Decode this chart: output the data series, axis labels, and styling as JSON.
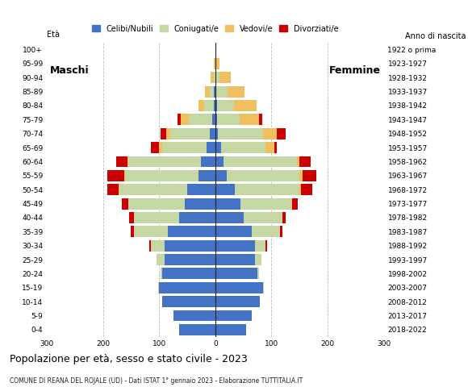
{
  "age_groups": [
    "0-4",
    "5-9",
    "10-14",
    "15-19",
    "20-24",
    "25-29",
    "30-34",
    "35-39",
    "40-44",
    "45-49",
    "50-54",
    "55-59",
    "60-64",
    "65-69",
    "70-74",
    "75-79",
    "80-84",
    "85-89",
    "90-94",
    "95-99",
    "100+"
  ],
  "birth_years": [
    "2018-2022",
    "2013-2017",
    "2008-2012",
    "2003-2007",
    "1998-2002",
    "1993-1997",
    "1988-1992",
    "1983-1987",
    "1978-1982",
    "1973-1977",
    "1968-1972",
    "1963-1967",
    "1958-1962",
    "1953-1957",
    "1948-1952",
    "1943-1947",
    "1938-1942",
    "1933-1937",
    "1928-1932",
    "1923-1927",
    "1922 o prima"
  ],
  "male_celibe": [
    65,
    75,
    95,
    100,
    95,
    90,
    90,
    85,
    65,
    55,
    50,
    30,
    25,
    15,
    10,
    5,
    2,
    2,
    0,
    0,
    0
  ],
  "male_coniugato": [
    0,
    0,
    0,
    2,
    2,
    15,
    25,
    60,
    80,
    100,
    120,
    130,
    130,
    80,
    70,
    42,
    18,
    8,
    3,
    0,
    0
  ],
  "male_vedovo": [
    0,
    0,
    0,
    0,
    0,
    0,
    0,
    0,
    0,
    0,
    2,
    2,
    2,
    5,
    8,
    15,
    10,
    8,
    5,
    2,
    0
  ],
  "male_divorziato": [
    0,
    0,
    0,
    0,
    0,
    0,
    2,
    5,
    8,
    12,
    20,
    30,
    20,
    15,
    10,
    5,
    0,
    0,
    0,
    0,
    0
  ],
  "female_celibe": [
    55,
    65,
    80,
    85,
    75,
    70,
    70,
    65,
    50,
    45,
    35,
    20,
    15,
    10,
    5,
    3,
    3,
    2,
    2,
    0,
    0
  ],
  "female_coniugato": [
    0,
    0,
    0,
    2,
    3,
    12,
    20,
    50,
    70,
    90,
    115,
    130,
    130,
    80,
    80,
    40,
    30,
    20,
    5,
    2,
    0
  ],
  "female_vedovo": [
    0,
    0,
    0,
    0,
    0,
    0,
    0,
    0,
    0,
    2,
    2,
    5,
    5,
    15,
    25,
    35,
    40,
    30,
    20,
    5,
    2
  ],
  "female_divorziato": [
    0,
    0,
    0,
    0,
    0,
    0,
    2,
    5,
    5,
    10,
    20,
    25,
    20,
    5,
    15,
    5,
    0,
    0,
    0,
    0,
    0
  ],
  "colors": {
    "celibe": "#4472c4",
    "coniugato": "#c5d8a4",
    "vedovo": "#f0c060",
    "divorziato": "#cc0000"
  },
  "title": "Popolazione per età, sesso e stato civile - 2023",
  "subtitle": "COMUNE DI REANA DEL ROJALE (UD) - Dati ISTAT 1° gennaio 2023 - Elaborazione TUTTITALIA.IT",
  "label_maschi": "Maschi",
  "label_femmine": "Femmine",
  "legend_labels": [
    "Celibi/Nubili",
    "Coniugati/e",
    "Vedovi/e",
    "Divorziati/e"
  ],
  "xlim": 300,
  "ylabel_right": "Anno di nascita",
  "eta_label": "Età",
  "background_color": "#ffffff",
  "grid_color": "#bbbbbb"
}
